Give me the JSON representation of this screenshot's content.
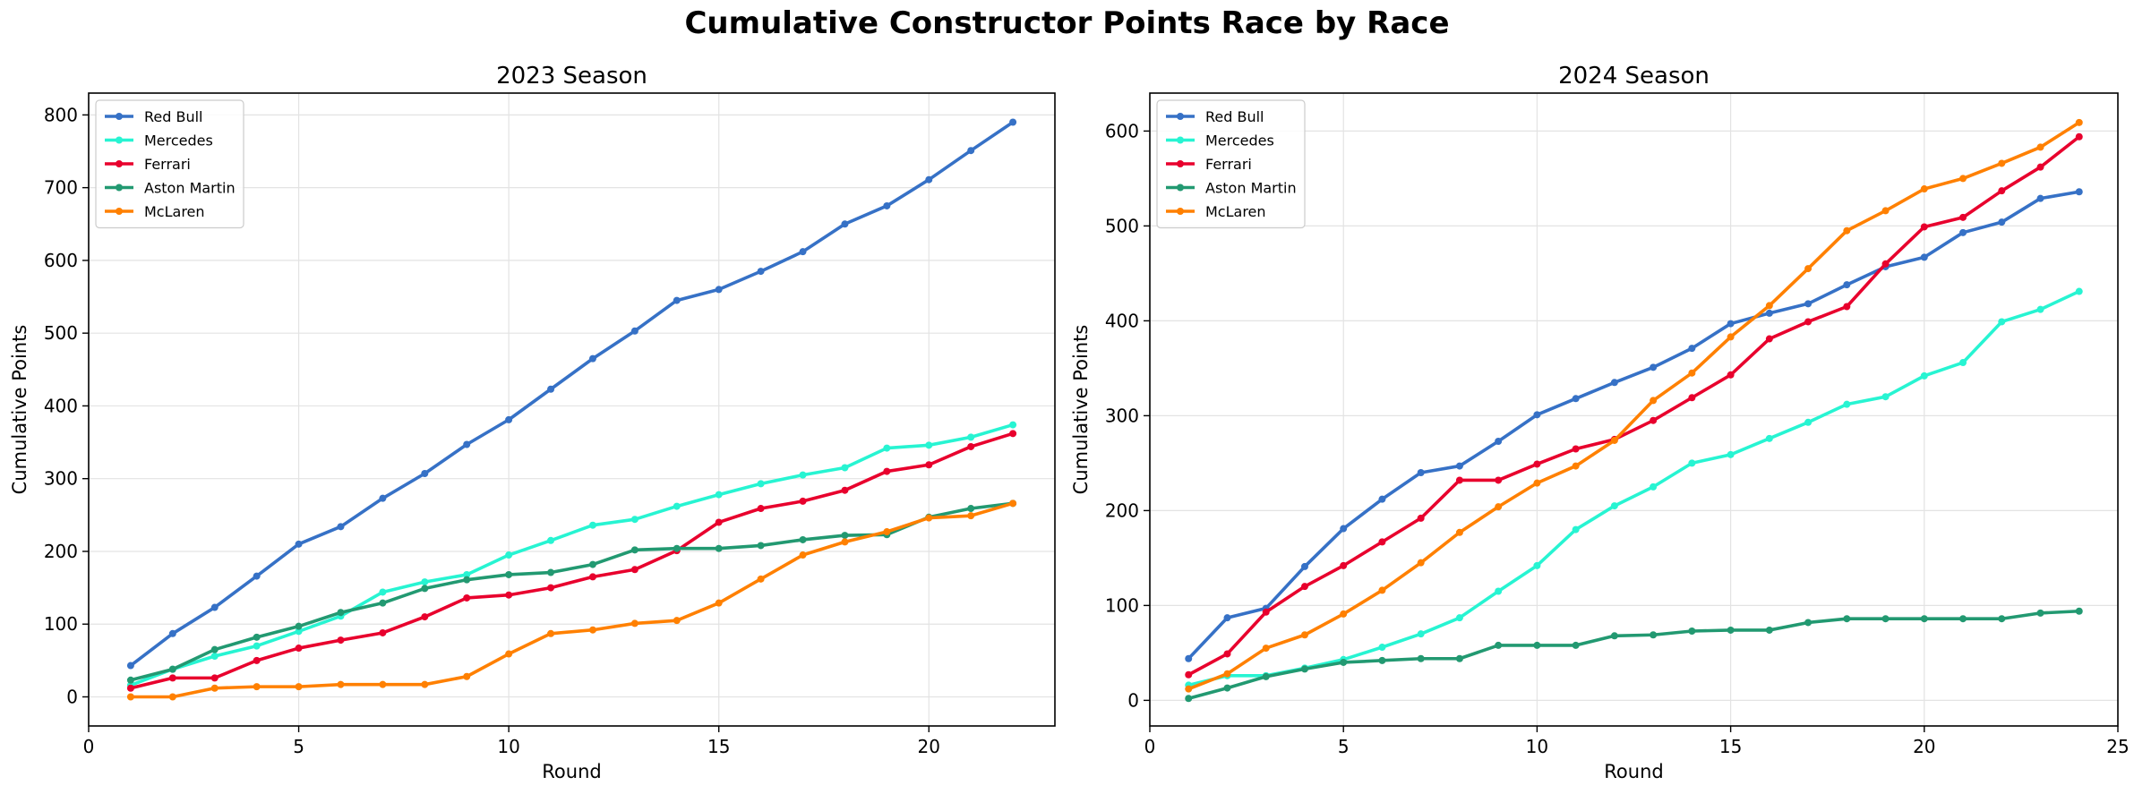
{
  "figure": {
    "title": "Cumulative Constructor Points Race by Race"
  },
  "colors": {
    "Red Bull": "#3671C6",
    "Mercedes": "#27F4D2",
    "Ferrari": "#E8002D",
    "Aston Martin": "#229971",
    "McLaren": "#FF8000"
  },
  "chart_data": [
    {
      "type": "line",
      "title": "2023 Season",
      "xlabel": "Round",
      "ylabel": "Cumulative Points",
      "xlim": [
        0,
        23
      ],
      "ylim": [
        -40,
        830
      ],
      "xticks": [
        0,
        5,
        10,
        15,
        20
      ],
      "yticks": [
        0,
        100,
        200,
        300,
        400,
        500,
        600,
        700,
        800
      ],
      "grid": true,
      "legend": "upper-left",
      "x": [
        1,
        2,
        3,
        4,
        5,
        6,
        7,
        8,
        9,
        10,
        11,
        12,
        13,
        14,
        15,
        16,
        17,
        18,
        19,
        20,
        21,
        22
      ],
      "series": [
        {
          "name": "Red Bull",
          "values": [
            43,
            87,
            123,
            166,
            210,
            234,
            273,
            307,
            347,
            381,
            423,
            465,
            503,
            545,
            560,
            585,
            612,
            650,
            675,
            711,
            751,
            790
          ]
        },
        {
          "name": "Mercedes",
          "values": [
            16,
            38,
            56,
            70,
            90,
            111,
            144,
            158,
            168,
            195,
            215,
            236,
            244,
            262,
            278,
            293,
            305,
            315,
            342,
            346,
            357,
            374
          ]
        },
        {
          "name": "Ferrari",
          "values": [
            12,
            26,
            26,
            50,
            67,
            78,
            88,
            110,
            136,
            140,
            150,
            165,
            175,
            201,
            240,
            259,
            269,
            284,
            310,
            319,
            344,
            362
          ]
        },
        {
          "name": "Aston Martin",
          "values": [
            23,
            38,
            65,
            82,
            97,
            116,
            129,
            149,
            161,
            168,
            171,
            182,
            202,
            204,
            204,
            208,
            216,
            222,
            223,
            247,
            259,
            266
          ]
        },
        {
          "name": "McLaren",
          "values": [
            0,
            0,
            12,
            14,
            14,
            17,
            17,
            17,
            28,
            59,
            87,
            92,
            101,
            105,
            129,
            162,
            195,
            213,
            227,
            246,
            249,
            266
          ]
        }
      ]
    },
    {
      "type": "line",
      "title": "2024 Season",
      "xlabel": "Round",
      "ylabel": "Cumulative Points",
      "xlim": [
        0,
        25
      ],
      "ylim": [
        -27,
        640
      ],
      "xticks": [
        0,
        5,
        10,
        15,
        20,
        25
      ],
      "yticks": [
        0,
        100,
        200,
        300,
        400,
        500,
        600
      ],
      "grid": true,
      "legend": "upper-left",
      "x": [
        1,
        2,
        3,
        4,
        5,
        6,
        7,
        8,
        9,
        10,
        11,
        12,
        13,
        14,
        15,
        16,
        17,
        18,
        19,
        20,
        21,
        22,
        23,
        24
      ],
      "series": [
        {
          "name": "Red Bull",
          "values": [
            44,
            87,
            97,
            141,
            181,
            212,
            240,
            247,
            273,
            301,
            318,
            335,
            351,
            371,
            397,
            408,
            418,
            438,
            457,
            467,
            493,
            504,
            529,
            536
          ]
        },
        {
          "name": "Mercedes",
          "values": [
            16,
            26,
            26,
            34,
            43,
            56,
            70,
            87,
            115,
            142,
            180,
            205,
            225,
            250,
            259,
            276,
            293,
            312,
            320,
            342,
            356,
            399,
            412,
            431
          ]
        },
        {
          "name": "Ferrari",
          "values": [
            27,
            49,
            93,
            120,
            142,
            167,
            192,
            232,
            232,
            249,
            265,
            275,
            295,
            319,
            343,
            381,
            399,
            415,
            460,
            499,
            509,
            537,
            562,
            594
          ]
        },
        {
          "name": "Aston Martin",
          "values": [
            2,
            13,
            25,
            33,
            40,
            42,
            44,
            44,
            58,
            58,
            58,
            68,
            69,
            73,
            74,
            74,
            82,
            86,
            86,
            86,
            86,
            86,
            92,
            94
          ]
        },
        {
          "name": "McLaren",
          "values": [
            12,
            28,
            55,
            69,
            91,
            116,
            145,
            177,
            204,
            229,
            247,
            274,
            316,
            345,
            383,
            416,
            455,
            495,
            516,
            539,
            550,
            566,
            583,
            609
          ]
        }
      ]
    }
  ]
}
